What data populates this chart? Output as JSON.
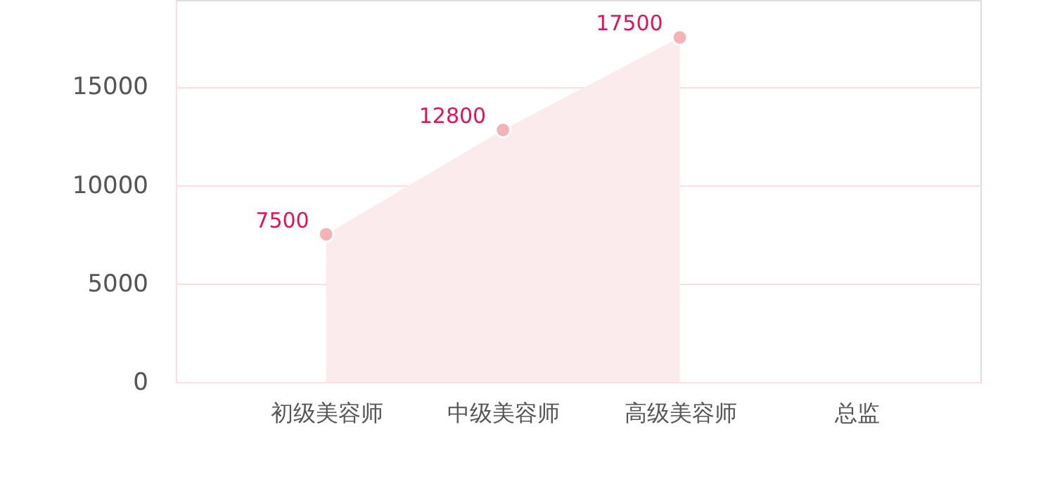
{
  "chart_data": {
    "type": "area",
    "categories": [
      "初级美容师",
      "中级美容师",
      "高级美容师",
      "总监"
    ],
    "series": [
      {
        "color": "#fcebec",
        "values": [
          7500,
          12800,
          17500,
          null
        ]
      }
    ],
    "marker": "circle",
    "data_labels": true,
    "ylim": [
      0,
      19400
    ],
    "yticks": [
      0,
      5000,
      10000,
      15000
    ],
    "grid": "y"
  }
}
